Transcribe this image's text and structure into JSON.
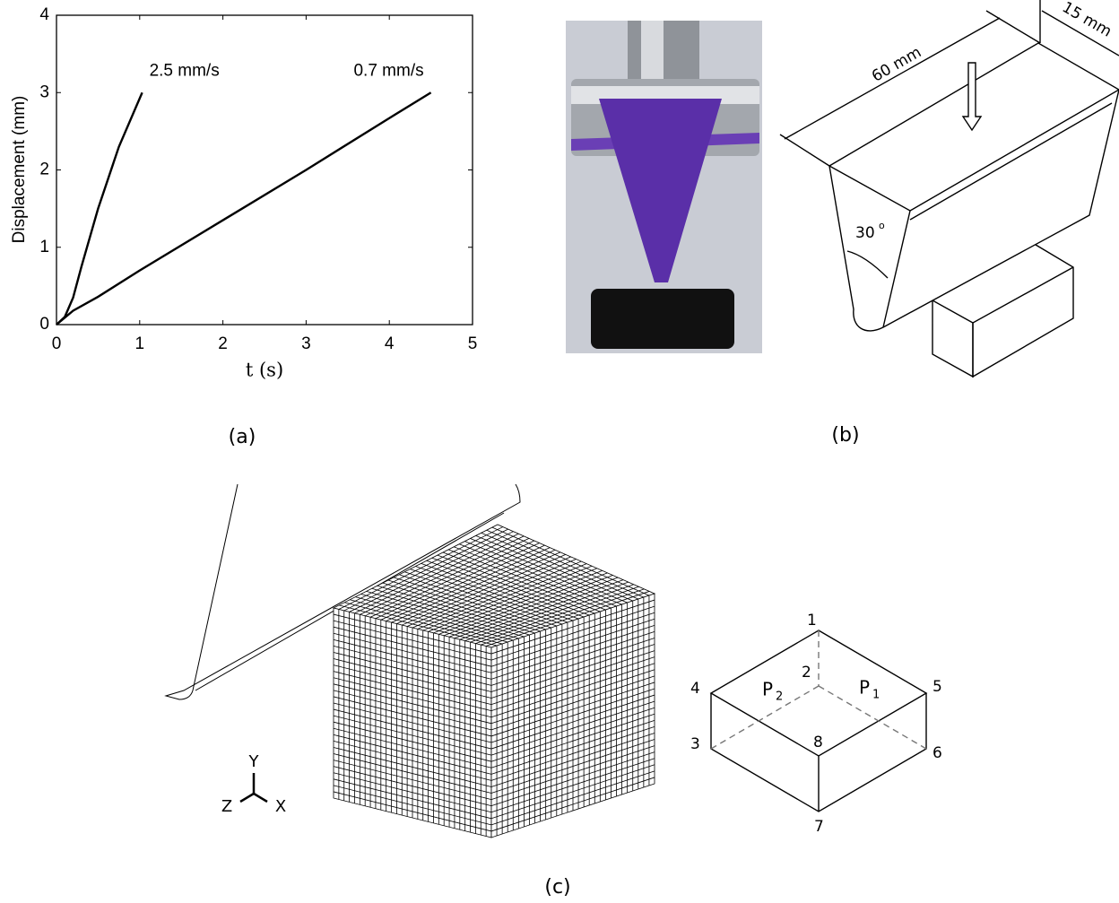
{
  "chart_data": {
    "type": "line",
    "xlabel": "t (s)",
    "ylabel": "Displacement (mm)",
    "xlim": [
      0,
      5
    ],
    "ylim": [
      0,
      4
    ],
    "xticks": [
      0,
      1,
      2,
      3,
      4,
      5
    ],
    "yticks": [
      0,
      1,
      2,
      3,
      4
    ],
    "series": [
      {
        "name": "2.5 mm/s",
        "color": "#000000",
        "x": [
          0,
          0.1,
          0.2,
          0.3,
          0.5,
          0.75,
          1.03
        ],
        "values": [
          0,
          0.1,
          0.35,
          0.75,
          1.5,
          2.3,
          3.0
        ]
      },
      {
        "name": "0.7 mm/s",
        "color": "#000000",
        "x": [
          0,
          0.2,
          0.5,
          1,
          2,
          3,
          4,
          4.5
        ],
        "values": [
          0,
          0.18,
          0.36,
          0.7,
          1.35,
          2.0,
          2.67,
          3.0
        ]
      }
    ]
  },
  "panel_labels": [
    "(a)",
    "(b)",
    "(c)"
  ],
  "diagram_b": {
    "length": "60 mm",
    "width": "15 mm",
    "angle": "30",
    "angle_unit": "o"
  },
  "diagram_c": {
    "axes": [
      "Y",
      "Z",
      "X"
    ],
    "vertices": [
      "1",
      "2",
      "3",
      "4",
      "5",
      "6",
      "7",
      "8"
    ],
    "planes": [
      {
        "letter": "P",
        "index": "2"
      },
      {
        "letter": "P",
        "index": "1"
      }
    ]
  }
}
